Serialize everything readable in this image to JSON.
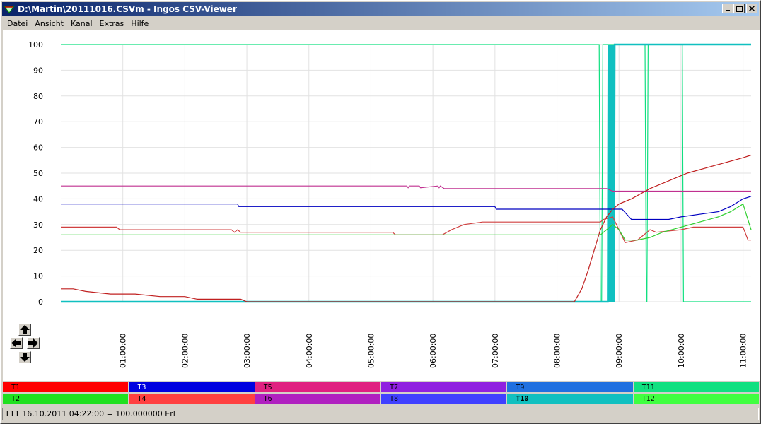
{
  "window": {
    "title": "D:\\Martin\\20111016.CSVm - Ingos CSV-Viewer"
  },
  "menu": [
    "Datei",
    "Ansicht",
    "Kanal",
    "Extras",
    "Hilfe"
  ],
  "caption_buttons": [
    "minimize",
    "maximize",
    "close"
  ],
  "status_text": "T11 16.10.2011 04:22:00 = 100.000000 Erl",
  "legend": [
    {
      "label": "T1",
      "bg": "#ff0000",
      "fg": "#000000",
      "bold": false
    },
    {
      "label": "T3",
      "bg": "#0000e0",
      "fg": "#ffffff",
      "bold": false
    },
    {
      "label": "T5",
      "bg": "#e02080",
      "fg": "#000000",
      "bold": false
    },
    {
      "label": "T7",
      "bg": "#9020e0",
      "fg": "#000000",
      "bold": false
    },
    {
      "label": "T9",
      "bg": "#2070e0",
      "fg": "#000000",
      "bold": false
    },
    {
      "label": "T11",
      "bg": "#10e080",
      "fg": "#000000",
      "bold": false
    },
    {
      "label": "T2",
      "bg": "#20e020",
      "fg": "#000000",
      "bold": false
    },
    {
      "label": "T4",
      "bg": "#ff4040",
      "fg": "#000000",
      "bold": false
    },
    {
      "label": "T6",
      "bg": "#b020c0",
      "fg": "#000000",
      "bold": false
    },
    {
      "label": "T8",
      "bg": "#4040ff",
      "fg": "#000000",
      "bold": false
    },
    {
      "label": "T10",
      "bg": "#10c0c0",
      "fg": "#000000",
      "bold": true
    },
    {
      "label": "T12",
      "bg": "#40ff40",
      "fg": "#000000",
      "bold": false
    }
  ],
  "chart_data": {
    "type": "line",
    "title": "",
    "xlabel": "",
    "ylabel": "",
    "xlim": [
      0,
      11.13
    ],
    "ylim": [
      0,
      100
    ],
    "grid": true,
    "yticks": [
      0,
      10,
      20,
      30,
      40,
      50,
      60,
      70,
      80,
      90,
      100
    ],
    "xtick_labels": [
      "01:00:00",
      "02:00:00",
      "03:00:00",
      "04:00:00",
      "05:00:00",
      "06:00:00",
      "07:00:00",
      "08:00:00",
      "09:00:00",
      "10:00:00",
      "11:00:00"
    ],
    "xtick_values": [
      1,
      2,
      3,
      4,
      5,
      6,
      7,
      8,
      9,
      10,
      11
    ],
    "series": [
      {
        "label": "T11",
        "color": "#10e080",
        "step": true,
        "x": [
          0,
          8.68,
          8.7,
          8.72,
          8.74,
          8.86,
          8.88,
          9.42,
          9.44,
          9.45,
          9.47,
          10.02,
          10.04,
          11.13
        ],
        "y": [
          100,
          100,
          0,
          0,
          100,
          100,
          100,
          100,
          0,
          0,
          100,
          100,
          0,
          0
        ]
      },
      {
        "label": "T10",
        "color": "#10c0c0",
        "step": true,
        "x": [
          0,
          8.82,
          8.83,
          8.84,
          8.85,
          8.86,
          8.87,
          8.88,
          8.89,
          8.9,
          8.91,
          8.92,
          8.93,
          8.94,
          9.42,
          9.43,
          10.0,
          10.01,
          11.13
        ],
        "y": [
          0,
          0,
          100,
          0,
          100,
          0,
          100,
          0,
          100,
          0,
          100,
          0,
          100,
          100,
          100,
          100,
          100,
          100,
          100
        ]
      },
      {
        "label": "T5",
        "color": "#c03090",
        "step": false,
        "x": [
          0,
          5.58,
          5.6,
          5.62,
          5.78,
          5.8,
          6.08,
          6.1,
          6.12,
          6.18,
          8.8,
          8.9,
          11.13
        ],
        "y": [
          45,
          45,
          44.3,
          45,
          45,
          44.3,
          45,
          44.3,
          45,
          44,
          44,
          43,
          43
        ]
      },
      {
        "label": "T3",
        "color": "#0000c0",
        "step": true,
        "x": [
          0,
          2.85,
          2.87,
          7.0,
          7.02,
          9.05,
          9.2,
          9.6,
          9.8,
          10.0,
          10.3,
          10.6,
          10.8,
          11.0,
          11.13
        ],
        "y": [
          38,
          38,
          37,
          37,
          36,
          36,
          32,
          32,
          32,
          33,
          34,
          35,
          37,
          40,
          41
        ]
      },
      {
        "label": "T1",
        "color": "#c02020",
        "step": false,
        "x": [
          0,
          0.2,
          0.4,
          0.8,
          1.2,
          1.6,
          2.0,
          2.2,
          2.9,
          3.0,
          8.28,
          8.4,
          8.5,
          8.6,
          8.7,
          8.8,
          8.9,
          9.0,
          9.2,
          9.5,
          9.8,
          10.1,
          10.4,
          10.7,
          11.0,
          11.13
        ],
        "y": [
          5,
          5,
          4,
          3,
          3,
          2,
          2,
          1,
          1,
          0,
          0,
          5,
          12,
          20,
          28,
          33,
          36,
          38,
          40,
          44,
          47,
          50,
          52,
          54,
          56,
          57
        ]
      },
      {
        "label": "T4",
        "color": "#d04040",
        "step": false,
        "x": [
          0,
          0.9,
          0.95,
          2.75,
          2.8,
          2.85,
          2.9,
          5.35,
          5.4,
          6.15,
          6.3,
          6.5,
          6.8,
          7.0,
          8.7,
          8.75,
          8.9,
          9.0,
          9.1,
          9.3,
          9.4,
          9.5,
          9.6,
          10.0,
          10.2,
          10.4,
          11.0,
          11.08,
          11.13
        ],
        "y": [
          29,
          29,
          28,
          28,
          27,
          28,
          27,
          27,
          26,
          26,
          28,
          30,
          31,
          31,
          31,
          32,
          33,
          28,
          23,
          24,
          26,
          28,
          27,
          28,
          29,
          29,
          29,
          24,
          24
        ]
      },
      {
        "label": "T2",
        "color": "#30d030",
        "step": false,
        "x": [
          0,
          8.7,
          8.75,
          8.8,
          8.9,
          9.0,
          9.1,
          9.3,
          9.5,
          9.7,
          10.0,
          10.3,
          10.6,
          10.8,
          11.0,
          11.13
        ],
        "y": [
          26,
          26,
          27,
          28,
          30,
          28,
          24,
          24,
          25,
          27,
          29,
          31,
          33,
          35,
          38,
          28
        ]
      }
    ]
  }
}
